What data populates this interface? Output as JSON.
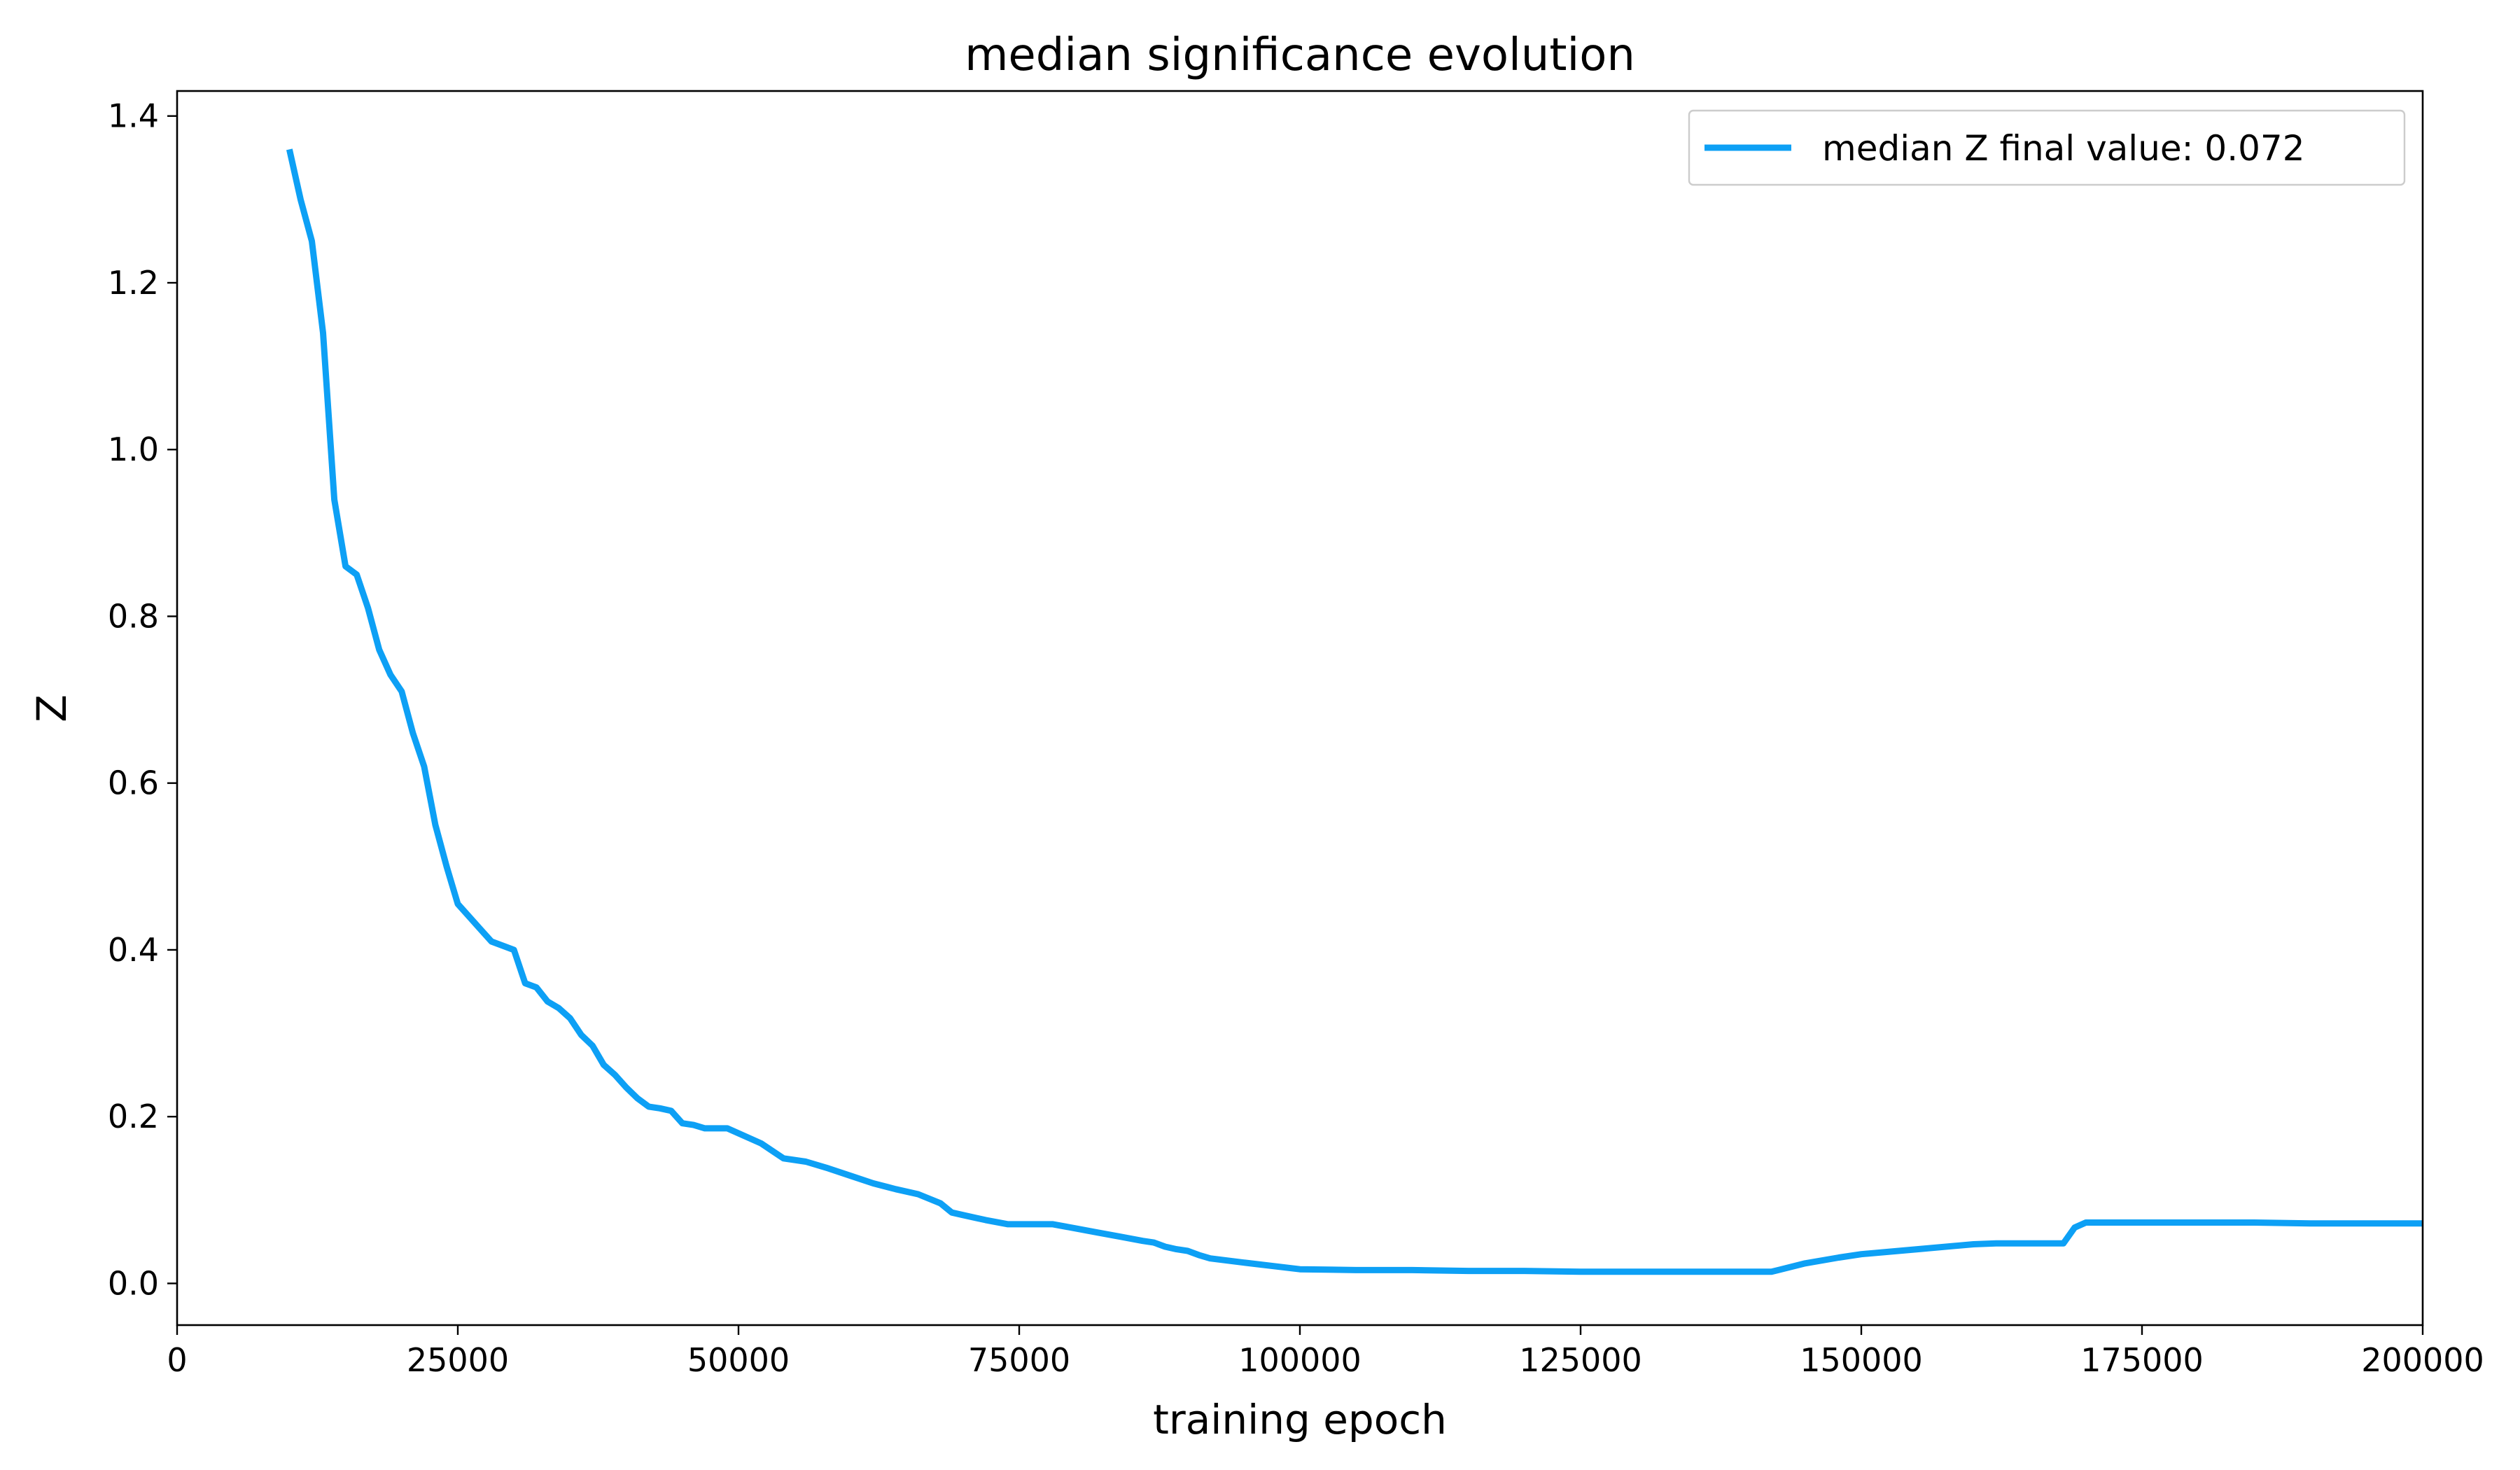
{
  "chart_data": {
    "type": "line",
    "title": "median significance evolution",
    "xlabel": "training epoch",
    "ylabel": "Z",
    "xlim": [
      0,
      200000
    ],
    "ylim": [
      -0.05,
      1.43
    ],
    "xticks": [
      0,
      25000,
      50000,
      75000,
      100000,
      125000,
      150000,
      175000,
      200000
    ],
    "xtick_labels": [
      "0",
      "25000",
      "50000",
      "75000",
      "100000",
      "125000",
      "150000",
      "175000",
      "200000"
    ],
    "yticks": [
      0.0,
      0.2,
      0.4,
      0.6,
      0.8,
      1.0,
      1.2,
      1.4
    ],
    "ytick_labels": [
      "0.0",
      "0.2",
      "0.4",
      "0.6",
      "0.8",
      "1.0",
      "1.2",
      "1.4"
    ],
    "grid": false,
    "legend": {
      "position": "top-right",
      "entries": [
        "median Z final value: 0.072"
      ]
    },
    "series": [
      {
        "name": "median Z final value: 0.072",
        "color": "#0da0f5",
        "x": [
          10000,
          11000,
          12000,
          13000,
          14000,
          15000,
          16000,
          17000,
          18000,
          19000,
          20000,
          21000,
          22000,
          23000,
          24000,
          25000,
          26000,
          27000,
          28000,
          29000,
          30000,
          31000,
          32000,
          33000,
          34000,
          35000,
          36000,
          37000,
          38000,
          39000,
          40000,
          41000,
          42000,
          43000,
          44000,
          45000,
          46000,
          47000,
          48000,
          49000,
          50000,
          52000,
          54000,
          56000,
          58000,
          60000,
          62000,
          64000,
          66000,
          68000,
          69000,
          70000,
          72000,
          74000,
          76000,
          78000,
          80000,
          82000,
          84000,
          86000,
          87000,
          88000,
          89000,
          90000,
          91000,
          92000,
          95000,
          100000,
          105000,
          110000,
          115000,
          120000,
          125000,
          130000,
          135000,
          140000,
          142000,
          145000,
          148000,
          150000,
          155000,
          160000,
          162000,
          165000,
          168000,
          169000,
          170000,
          175000,
          180000,
          185000,
          190000,
          195000,
          200000
        ],
        "y": [
          1.36,
          1.3,
          1.25,
          1.14,
          0.94,
          0.86,
          0.85,
          0.81,
          0.76,
          0.73,
          0.71,
          0.66,
          0.62,
          0.55,
          0.5,
          0.455,
          0.44,
          0.425,
          0.41,
          0.405,
          0.4,
          0.36,
          0.355,
          0.338,
          0.33,
          0.318,
          0.298,
          0.285,
          0.262,
          0.25,
          0.235,
          0.222,
          0.212,
          0.21,
          0.207,
          0.192,
          0.19,
          0.186,
          0.186,
          0.186,
          0.18,
          0.168,
          0.15,
          0.146,
          0.138,
          0.129,
          0.12,
          0.113,
          0.107,
          0.096,
          0.085,
          0.082,
          0.076,
          0.071,
          0.071,
          0.071,
          0.066,
          0.061,
          0.056,
          0.051,
          0.049,
          0.044,
          0.041,
          0.039,
          0.034,
          0.03,
          0.025,
          0.017,
          0.016,
          0.016,
          0.015,
          0.015,
          0.014,
          0.014,
          0.014,
          0.014,
          0.014,
          0.024,
          0.031,
          0.035,
          0.041,
          0.047,
          0.048,
          0.048,
          0.048,
          0.067,
          0.073,
          0.073,
          0.073,
          0.073,
          0.072,
          0.072,
          0.072
        ]
      }
    ]
  }
}
